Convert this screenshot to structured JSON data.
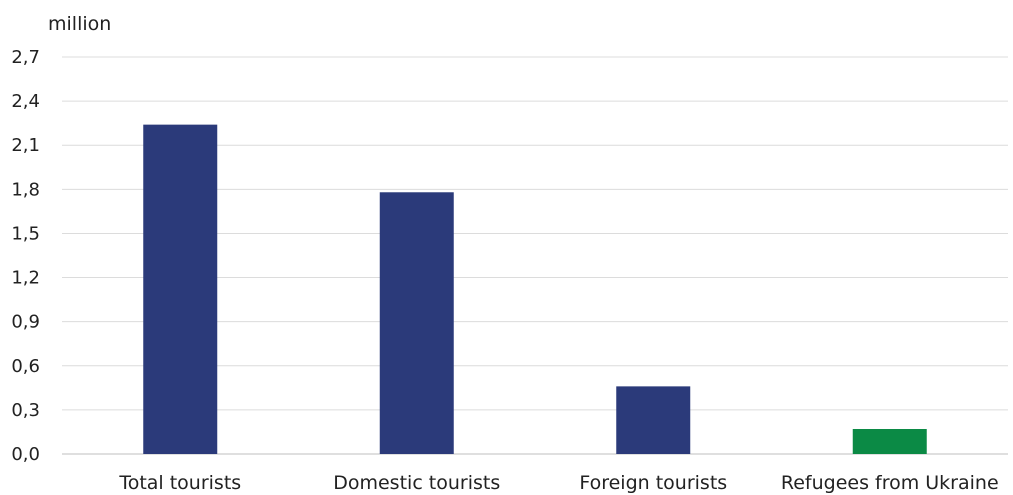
{
  "chart_data": {
    "type": "bar",
    "unit_label": "million",
    "categories": [
      "Total tourists",
      "Domestic tourists",
      "Foreign tourists",
      "Refugees from Ukraine"
    ],
    "values": [
      2.24,
      1.78,
      0.46,
      0.17
    ],
    "bar_colors": [
      "#2b3a7a",
      "#2b3a7a",
      "#2b3a7a",
      "#0b8a45"
    ],
    "ylim": [
      0,
      2.7
    ],
    "y_ticks": [
      "0,0",
      "0,3",
      "0,6",
      "0,9",
      "1,2",
      "1,5",
      "1,8",
      "2,1",
      "2,4",
      "2,7"
    ],
    "y_tick_values": [
      0,
      0.3,
      0.6,
      0.9,
      1.2,
      1.5,
      1.8,
      2.1,
      2.4,
      2.7
    ],
    "grid": true,
    "legend": "none"
  }
}
